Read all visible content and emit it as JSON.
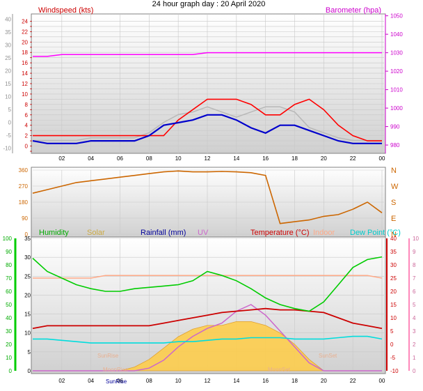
{
  "title": "24 hour graph day : 20 April 2020",
  "panels": {
    "wind": {
      "left_label": "Windspeed (kts)",
      "right_label": "Barometer (hpa)"
    },
    "direction": {
      "dir_labels": [
        "N",
        "W",
        "S",
        "E",
        "N"
      ]
    },
    "climate": {
      "labels": {
        "humidity": "Humidity",
        "solar": "Solar",
        "rainfall": "Rainfall (mm)",
        "uv": "UV",
        "temperature": "Temperature (°C)",
        "indoor": "Indoor",
        "dewpoint": "Dew Point (°C)"
      },
      "annotations": {
        "sunrise": "SunRise",
        "sunset": "SunSet",
        "moonrise": "MoonRise",
        "moonset": "MoonSet"
      }
    }
  },
  "colors": {
    "wind_gust": "#ff0000",
    "wind_avg": "#0000cc",
    "barometer": "#ff00ff",
    "direction": "#cc6600",
    "humidity": "#00cc00",
    "solar": "#ffcc44",
    "rainfall": "#000099",
    "uv": "#cc66cc",
    "temperature": "#cc0000",
    "indoor": "#ffaa88",
    "dewpoint": "#00dddd",
    "outline": "#404040"
  },
  "chart_data": [
    {
      "type": "line",
      "name": "wind",
      "xticks": [
        "02",
        "04",
        "06",
        "08",
        "10",
        "12",
        "14",
        "16",
        "18",
        "20",
        "22",
        "00"
      ],
      "x": [
        0,
        1,
        2,
        3,
        4,
        5,
        6,
        7,
        8,
        9,
        10,
        11,
        12,
        13,
        14,
        15,
        16,
        17,
        18,
        19,
        20,
        21,
        22,
        23,
        24
      ],
      "ylim": [
        -1.4,
        25.4
      ],
      "yticks": [
        -1,
        0,
        1,
        2,
        3,
        4,
        5,
        6,
        7,
        8,
        9,
        10,
        11,
        12,
        13,
        14,
        15,
        16,
        17,
        18,
        19,
        20,
        21,
        22,
        23,
        24
      ],
      "y2lim": [
        975.5,
        1051
      ],
      "y2ticks": [
        980,
        990,
        1000,
        1010,
        1020,
        1030,
        1040,
        1050
      ],
      "left_outer_ticks": [
        -10,
        -5,
        0,
        5,
        10,
        15,
        20,
        25,
        30,
        35,
        40
      ],
      "series": [
        {
          "id": "gust",
          "values": [
            2,
            2,
            2,
            2,
            2,
            2,
            2,
            2,
            2,
            2,
            5,
            7,
            9,
            9,
            9,
            8,
            6,
            6,
            8,
            9,
            7,
            4,
            2,
            1,
            1
          ]
        },
        {
          "id": "average",
          "values": [
            1,
            0.5,
            0.5,
            0.5,
            1,
            1,
            1,
            1,
            2,
            4,
            4.5,
            5,
            6,
            6,
            5,
            3.5,
            2.5,
            4,
            4,
            3,
            2,
            1,
            0.5,
            0.5,
            0.5
          ]
        },
        {
          "id": "barometer",
          "axis": "right",
          "values": [
            1028,
            1028,
            1029,
            1029,
            1029,
            1029,
            1029,
            1029,
            1029,
            1029,
            1029,
            1029,
            1030,
            1030,
            1030,
            1030,
            1030,
            1030,
            1030,
            1030,
            1030,
            1030,
            1030,
            1030,
            1030
          ]
        },
        {
          "id": "gust_outer",
          "axis": "outer",
          "values": [
            -7,
            -7,
            -7,
            -7,
            -6,
            -6,
            -6,
            -6,
            -4,
            0,
            3,
            4,
            6,
            4,
            2,
            4,
            6,
            6,
            4,
            -2,
            -4,
            -6,
            -7,
            -7,
            -7
          ]
        }
      ]
    },
    {
      "type": "line",
      "name": "wind-direction",
      "x": [
        0,
        1,
        2,
        3,
        4,
        5,
        6,
        7,
        8,
        9,
        10,
        11,
        12,
        13,
        14,
        15,
        16,
        17,
        18,
        19,
        20,
        21,
        22,
        23,
        24
      ],
      "ylim": [
        0,
        360
      ],
      "yticks": [
        0,
        90,
        180,
        270,
        360
      ],
      "values": [
        230,
        250,
        270,
        290,
        300,
        310,
        320,
        330,
        340,
        350,
        355,
        350,
        350,
        352,
        350,
        345,
        330,
        60,
        70,
        80,
        100,
        110,
        140,
        180,
        120
      ]
    },
    {
      "type": "line",
      "name": "climate",
      "x": [
        0,
        1,
        2,
        3,
        4,
        5,
        6,
        7,
        8,
        9,
        10,
        11,
        12,
        13,
        14,
        15,
        16,
        17,
        18,
        19,
        20,
        21,
        22,
        23,
        24
      ],
      "axes": {
        "humidity": {
          "lim": [
            0,
            100
          ],
          "ticks": [
            0,
            10,
            20,
            30,
            40,
            50,
            60,
            70,
            80,
            90,
            100
          ]
        },
        "solar": {
          "lim": [
            0,
            35
          ],
          "ticks": [
            0,
            5,
            10,
            15,
            20,
            25,
            30,
            35
          ]
        },
        "temperature": {
          "lim": [
            -10,
            40
          ],
          "ticks": [
            -10,
            -5,
            0,
            5,
            10,
            15,
            20,
            25,
            30,
            35,
            40
          ]
        },
        "uv": {
          "lim": [
            0,
            10
          ],
          "ticks": [
            0,
            1,
            2,
            3,
            4,
            5,
            6,
            7,
            8,
            9,
            10
          ]
        }
      },
      "series": [
        {
          "id": "humidity",
          "axis": "humidity",
          "values": [
            85,
            75,
            70,
            65,
            62,
            60,
            60,
            62,
            63,
            64,
            65,
            68,
            75,
            72,
            68,
            62,
            55,
            50,
            47,
            45,
            52,
            65,
            78,
            84,
            86
          ]
        },
        {
          "id": "temperature",
          "axis": "temperature",
          "values": [
            6,
            7,
            7,
            7,
            7,
            7,
            7,
            7,
            7,
            8,
            9,
            10,
            11,
            12,
            12.5,
            13,
            13.5,
            13,
            13,
            12.5,
            12,
            10,
            8,
            7,
            6
          ]
        },
        {
          "id": "dewpoint",
          "axis": "temperature",
          "values": [
            2,
            2,
            1.5,
            1,
            0.5,
            0.5,
            0.5,
            0.5,
            0.5,
            0.5,
            1,
            1,
            1.5,
            2,
            2,
            2.5,
            2.5,
            2.5,
            2,
            2,
            2,
            2.5,
            3,
            3,
            2
          ]
        },
        {
          "id": "indoor",
          "axis": "temperature",
          "values": [
            25,
            25,
            25,
            25,
            25,
            26,
            26,
            26,
            26,
            26,
            26,
            26,
            26,
            26,
            26,
            26,
            26,
            26,
            26,
            26,
            26,
            26,
            26,
            26,
            25
          ]
        },
        {
          "id": "solar",
          "axis": "solar",
          "values": [
            0,
            0,
            0,
            0,
            0,
            0,
            0,
            1,
            3,
            6,
            9,
            11,
            12,
            12,
            13,
            13,
            12,
            10,
            7,
            3,
            0,
            0,
            0,
            0,
            0
          ]
        },
        {
          "id": "uv",
          "axis": "uv",
          "values": [
            0,
            0,
            0,
            0,
            0,
            0,
            0,
            0,
            0.2,
            0.8,
            1.8,
            2.6,
            3.2,
            3.6,
            4.5,
            5,
            4.2,
            3,
            1.8,
            0.6,
            0,
            0,
            0,
            0,
            0
          ]
        }
      ]
    }
  ]
}
